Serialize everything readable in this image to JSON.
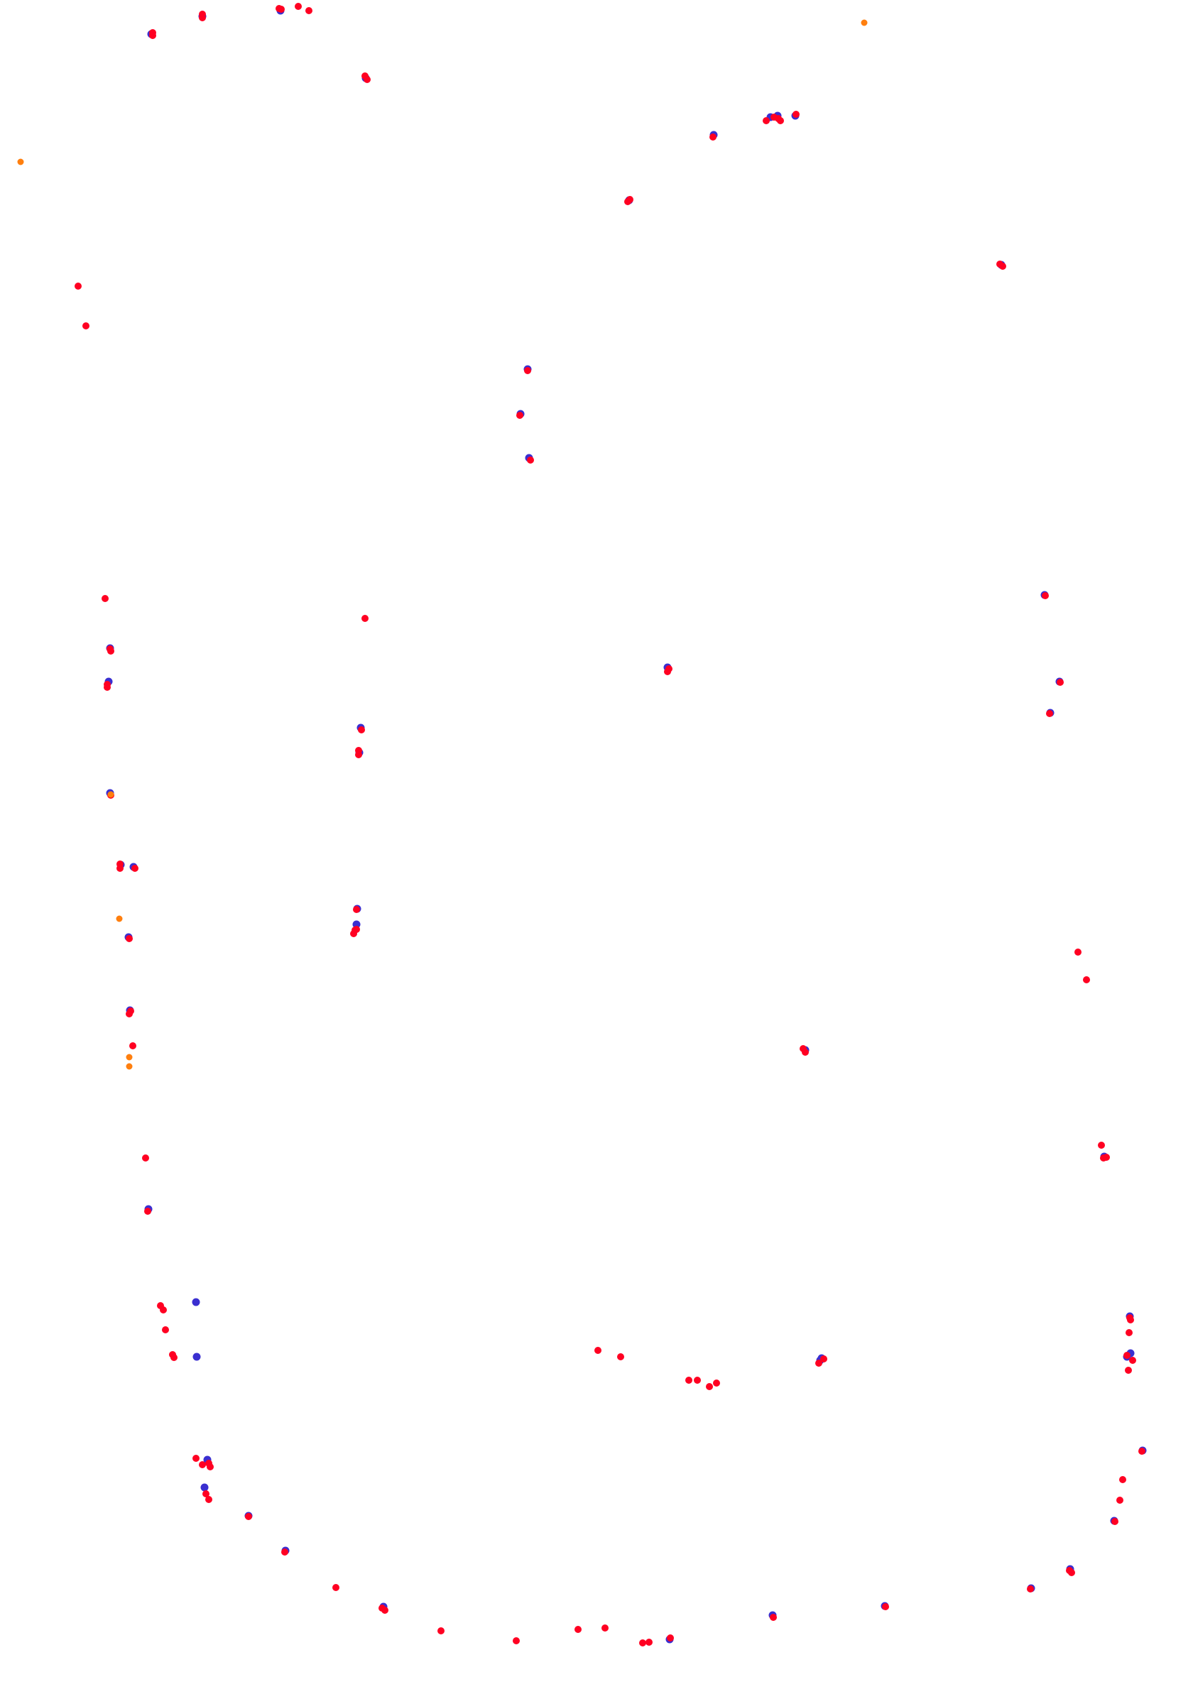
{
  "chart_data": {
    "type": "scatter",
    "title": "",
    "xlabel": "",
    "ylabel": "",
    "grid": false,
    "axes_visible": false,
    "colors": {
      "background": "#ffffff",
      "blue": "#3a2fd0",
      "red": "#ff0022",
      "orange": "#ff7f0e"
    },
    "series": [
      {
        "color": "#3a2fd0",
        "radius": 5.5,
        "points": [
          [
            285,
            23
          ],
          [
            395,
            15
          ],
          [
            213,
            48
          ],
          [
            515,
            110
          ],
          [
            1005,
            190
          ],
          [
            1085,
            165
          ],
          [
            1095,
            163
          ],
          [
            1120,
            163
          ],
          [
            886,
            282
          ],
          [
            1410,
            373
          ],
          [
            743,
            520
          ],
          [
            733,
            583
          ],
          [
            745,
            645
          ],
          [
            1471,
            838
          ],
          [
            1492,
            960
          ],
          [
            1479,
            1004
          ],
          [
            155,
            913
          ],
          [
            153,
            960
          ],
          [
            940,
            940
          ],
          [
            508,
            1025
          ],
          [
            506,
            1060
          ],
          [
            155,
            1117
          ],
          [
            170,
            1218
          ],
          [
            188,
            1221
          ],
          [
            181,
            1320
          ],
          [
            503,
            1280
          ],
          [
            502,
            1302
          ],
          [
            183,
            1423
          ],
          [
            1134,
            1479
          ],
          [
            1555,
            1629
          ],
          [
            209,
            1703
          ],
          [
            1591,
            1854
          ],
          [
            1592,
            1906
          ],
          [
            1587,
            1911
          ],
          [
            1155,
            1916
          ],
          [
            1157,
            1913
          ],
          [
            276,
            1834
          ],
          [
            277,
            1911
          ],
          [
            292,
            2056
          ],
          [
            288,
            2095
          ],
          [
            350,
            2135
          ],
          [
            402,
            2184
          ],
          [
            540,
            2263
          ],
          [
            1246,
            2262
          ],
          [
            1452,
            2237
          ],
          [
            1507,
            2210
          ],
          [
            1609,
            2043
          ],
          [
            1569,
            2142
          ],
          [
            943,
            2309
          ],
          [
            1088,
            2275
          ]
        ]
      },
      {
        "color": "#ff0022",
        "radius": 5,
        "points": [
          [
            285,
            20
          ],
          [
            285,
            25
          ],
          [
            396,
            13
          ],
          [
            215,
            50
          ],
          [
            215,
            46
          ],
          [
            393,
            12
          ],
          [
            420,
            9
          ],
          [
            435,
            15
          ],
          [
            517,
            112
          ],
          [
            514,
            107
          ],
          [
            1004,
            193
          ],
          [
            1079,
            170
          ],
          [
            1090,
            165
          ],
          [
            1096,
            167
          ],
          [
            1099,
            170
          ],
          [
            1121,
            161
          ],
          [
            884,
            284
          ],
          [
            887,
            281
          ],
          [
            1408,
            372
          ],
          [
            1412,
            375
          ],
          [
            110,
            403
          ],
          [
            121,
            459
          ],
          [
            743,
            522
          ],
          [
            732,
            585
          ],
          [
            747,
            648
          ],
          [
            1472,
            839
          ],
          [
            1493,
            961
          ],
          [
            1478,
            1005
          ],
          [
            148,
            843
          ],
          [
            155,
            914
          ],
          [
            156,
            917
          ],
          [
            151,
            964
          ],
          [
            151,
            968
          ],
          [
            942,
            942
          ],
          [
            940,
            946
          ],
          [
            514,
            871
          ],
          [
            509,
            1028
          ],
          [
            505,
            1063
          ],
          [
            505,
            1057
          ],
          [
            156,
            1120
          ],
          [
            169,
            1217
          ],
          [
            169,
            1223
          ],
          [
            190,
            1223
          ],
          [
            182,
            1322
          ],
          [
            502,
            1281
          ],
          [
            502,
            1309
          ],
          [
            498,
            1315
          ],
          [
            500,
            1310
          ],
          [
            1518,
            1341
          ],
          [
            1530,
            1380
          ],
          [
            1131,
            1477
          ],
          [
            1134,
            1482
          ],
          [
            184,
            1424
          ],
          [
            182,
            1428
          ],
          [
            187,
            1473
          ],
          [
            205,
            1631
          ],
          [
            1551,
            1613
          ],
          [
            1554,
            1631
          ],
          [
            1558,
            1630
          ],
          [
            208,
            1706
          ],
          [
            226,
            1839
          ],
          [
            230,
            1845
          ],
          [
            233,
            1873
          ],
          [
            243,
            1908
          ],
          [
            245,
            1912
          ],
          [
            1591,
            1856
          ],
          [
            1592,
            1859
          ],
          [
            1590,
            1877
          ],
          [
            1587,
            1909
          ],
          [
            1595,
            1916
          ],
          [
            1589,
            1930
          ],
          [
            1153,
            1920
          ],
          [
            1160,
            1914
          ],
          [
            842,
            1902
          ],
          [
            874,
            1911
          ],
          [
            970,
            1944
          ],
          [
            982,
            1944
          ],
          [
            999,
            1953
          ],
          [
            1009,
            1948
          ],
          [
            276,
            2054
          ],
          [
            285,
            2063
          ],
          [
            294,
            2061
          ],
          [
            296,
            2066
          ],
          [
            290,
            2104
          ],
          [
            294,
            2112
          ],
          [
            350,
            2136
          ],
          [
            401,
            2186
          ],
          [
            473,
            2236
          ],
          [
            538,
            2265
          ],
          [
            542,
            2268
          ],
          [
            621,
            2297
          ],
          [
            727,
            2311
          ],
          [
            814,
            2295
          ],
          [
            852,
            2293
          ],
          [
            905,
            2314
          ],
          [
            914,
            2313
          ],
          [
            944,
            2307
          ],
          [
            1089,
            2278
          ],
          [
            1247,
            2263
          ],
          [
            1451,
            2238
          ],
          [
            1506,
            2212
          ],
          [
            1509,
            2215
          ],
          [
            1608,
            2044
          ],
          [
            1581,
            2084
          ],
          [
            1577,
            2113
          ],
          [
            1570,
            2143
          ]
        ]
      },
      {
        "color": "#ff7f0e",
        "radius": 4.5,
        "points": [
          [
            1217,
            32
          ],
          [
            29,
            228
          ],
          [
            156,
            1119
          ],
          [
            168,
            1294
          ],
          [
            182,
            1489
          ],
          [
            182,
            1502
          ]
        ]
      }
    ]
  }
}
